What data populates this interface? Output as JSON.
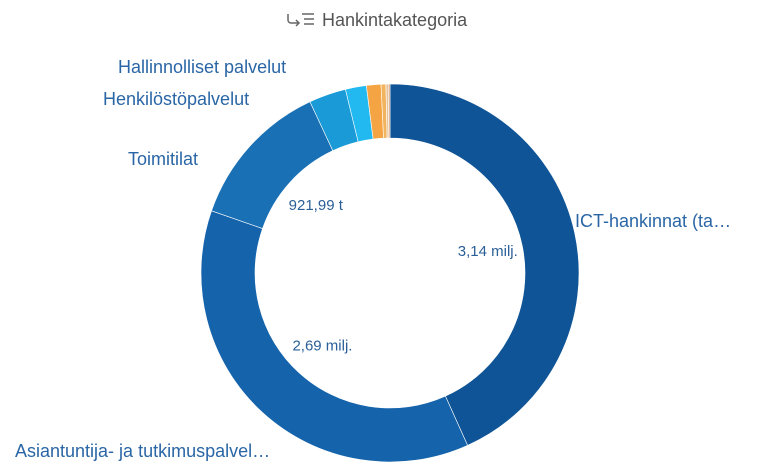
{
  "chart_data": {
    "type": "donut",
    "title": "Hankintakategoria",
    "categories": [
      "ICT-hankinnat (ta…",
      "Asiantuntija- ja tutkimuspalvel…",
      "Toimitilat",
      "Henkilöstöpalvelut",
      "Hallinnolliset palvelut",
      null,
      null,
      null,
      null
    ],
    "values": [
      3140000,
      2690000,
      921990,
      230000,
      130000,
      90000,
      30000,
      15000,
      10000
    ],
    "value_labels": [
      "3,14 milj.",
      "2,69 milj.",
      "921,99 t",
      null,
      null,
      null,
      null,
      null,
      null
    ],
    "colors": [
      "#0f5496",
      "#1463ab",
      "#1a70b5",
      "#1a9bd7",
      "#22b9f1",
      "#f5a443",
      "#f2b35e",
      "#e6c49a",
      "#d49a70"
    ]
  }
}
